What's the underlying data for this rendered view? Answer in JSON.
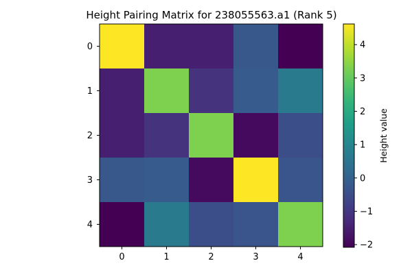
{
  "chart_data": {
    "type": "heatmap",
    "title": "Height Pairing Matrix for 238055563.a1 (Rank 5)",
    "x_ticks": [
      "0",
      "1",
      "2",
      "3",
      "4"
    ],
    "y_ticks": [
      "0",
      "1",
      "2",
      "3",
      "4"
    ],
    "matrix": [
      [
        4.62,
        -1.5,
        -1.5,
        -0.25,
        -2.08
      ],
      [
        -1.5,
        3.31,
        -1.1,
        -0.18,
        0.66
      ],
      [
        -1.5,
        -1.1,
        3.31,
        -1.9,
        -0.5
      ],
      [
        -0.25,
        -0.18,
        -1.9,
        4.62,
        -0.32
      ],
      [
        -2.08,
        0.66,
        -0.5,
        -0.32,
        3.31
      ]
    ],
    "colormap": "viridis",
    "vmin": -2.08,
    "vmax": 4.62,
    "colorbar": {
      "label": "Height value",
      "ticks": [
        "4",
        "3",
        "2",
        "1",
        "0",
        "−1",
        "−2"
      ],
      "tick_values": [
        4,
        3,
        2,
        1,
        0,
        -1,
        -2
      ]
    },
    "grid": false
  }
}
